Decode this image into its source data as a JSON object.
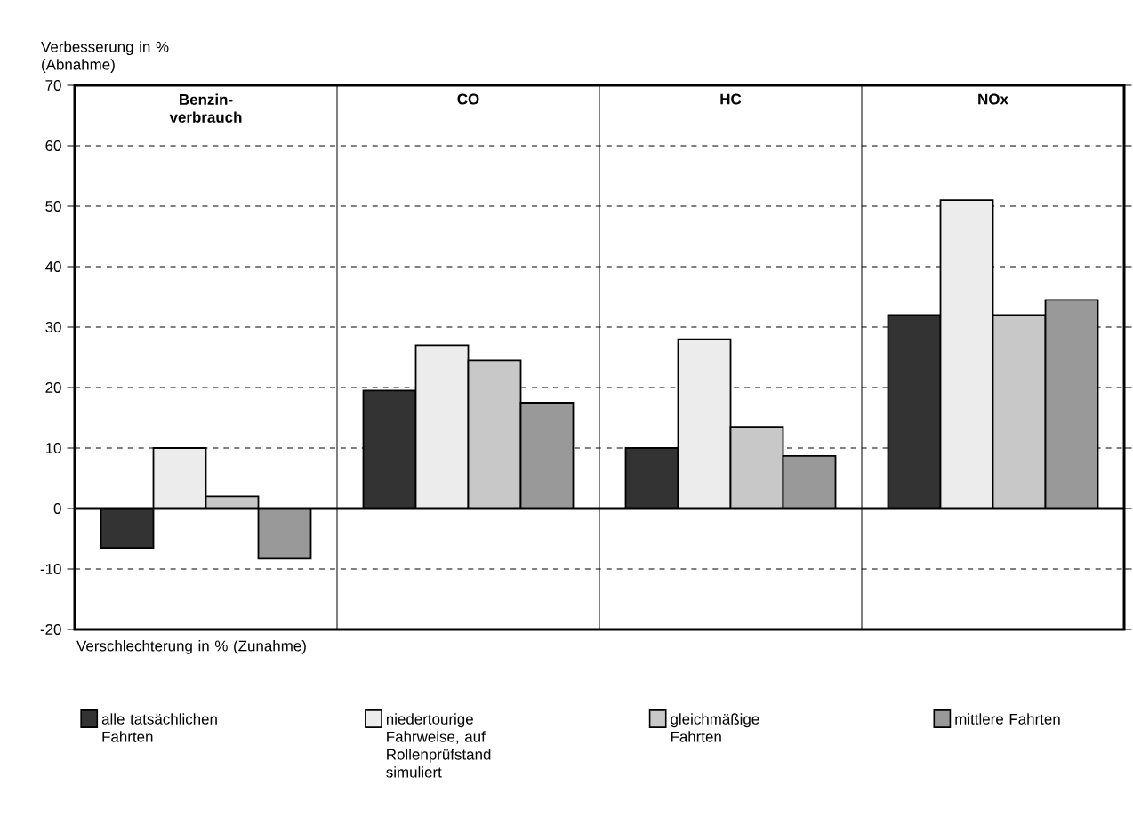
{
  "chart_data": {
    "type": "bar",
    "ylabel": "Verbesserung in % (Abnahme)",
    "annotations": [
      "Verschlechterung in % (Zunahme)"
    ],
    "categories": [
      "Benzin- verbrauch",
      "CO",
      "HC",
      "NOx"
    ],
    "series": [
      {
        "name": "alle tatsächlichen Fahrten",
        "color": "#333333",
        "values": [
          -6.5,
          19.5,
          10,
          32
        ]
      },
      {
        "name": "niedertourige Fahrweise, auf Rollenprüfstand simuliert",
        "color": "#ececec",
        "values": [
          10,
          27,
          28,
          51
        ]
      },
      {
        "name": "gleichmäßige Fahrten",
        "color": "#c8c8c8",
        "values": [
          2,
          24.5,
          13.5,
          32
        ]
      },
      {
        "name": "mittlere Fahrten",
        "color": "#999999",
        "values": [
          -8.3,
          17.5,
          8.7,
          34.5
        ]
      }
    ],
    "ylim": [
      -20,
      70
    ],
    "yticks": [
      -20,
      -10,
      0,
      10,
      20,
      30,
      40,
      50,
      60,
      70
    ],
    "grid": "y",
    "legend": "bottom"
  }
}
